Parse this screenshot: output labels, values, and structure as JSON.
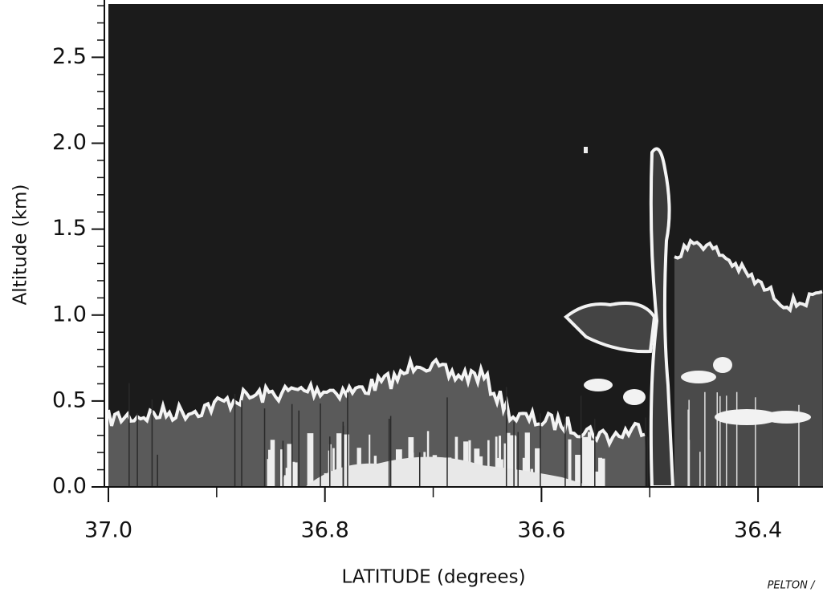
{
  "chart_data": {
    "type": "image",
    "y_label": "Altitude (km)",
    "x_label": "LATITUDE (degrees)",
    "annotation": "PELTON /",
    "xlim": [
      37.0,
      36.34
    ],
    "ylim": [
      0,
      2.81
    ],
    "xticks": [
      {
        "value": 37.0,
        "label": "37.0"
      },
      36.8,
      36.6,
      36.4
    ],
    "xminorticks": [
      36.9,
      36.7,
      36.5
    ],
    "yticks": [
      {
        "value": 0,
        "label": "0.0"
      },
      0.5,
      {
        "value": 1,
        "label": "1.0"
      },
      1.5,
      {
        "value": 2,
        "label": "2.0"
      },
      2.5
    ],
    "yminorticks": [
      0.1,
      0.2,
      0.3,
      0.4,
      0.6,
      0.7,
      0.8,
      0.9,
      1.1,
      1.2,
      1.3,
      1.4,
      1.6,
      1.7,
      1.8,
      1.9,
      2.1,
      2.2,
      2.3,
      2.4,
      2.6,
      2.7,
      2.8
    ]
  }
}
